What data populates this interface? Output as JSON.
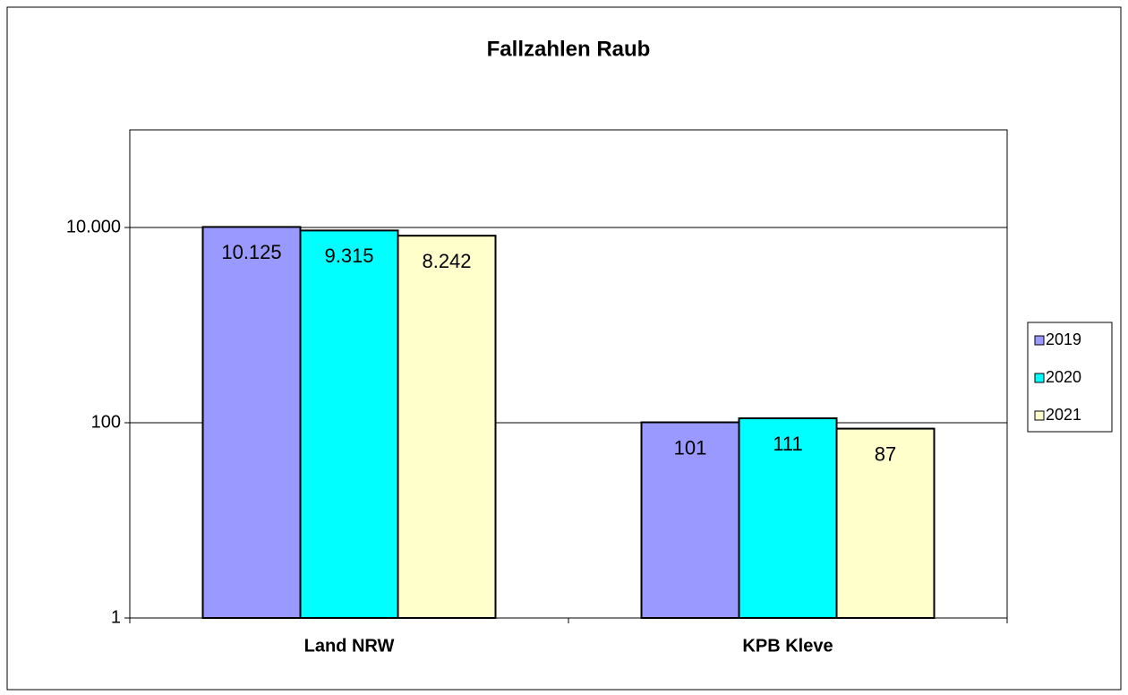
{
  "chart_data": {
    "type": "bar",
    "title": "Fallzahlen Raub",
    "categories": [
      "Land NRW",
      "KPB Kleve"
    ],
    "series": [
      {
        "name": "2019",
        "color": "#9999ff",
        "values": [
          10125,
          101
        ],
        "value_labels": [
          "10.125",
          "101"
        ]
      },
      {
        "name": "2020",
        "color": "#00ffff",
        "values": [
          9315,
          111
        ],
        "value_labels": [
          "9.315",
          "111"
        ]
      },
      {
        "name": "2021",
        "color": "#ffffcc",
        "values": [
          8242,
          87
        ],
        "value_labels": [
          "8.242",
          "87"
        ]
      }
    ],
    "ylim": [
      1,
      100000
    ],
    "yscale": "log",
    "yticks": [
      1,
      100,
      {
        "value": 10000,
        "label": "10.000"
      }
    ],
    "grid": true,
    "legend": "right"
  }
}
